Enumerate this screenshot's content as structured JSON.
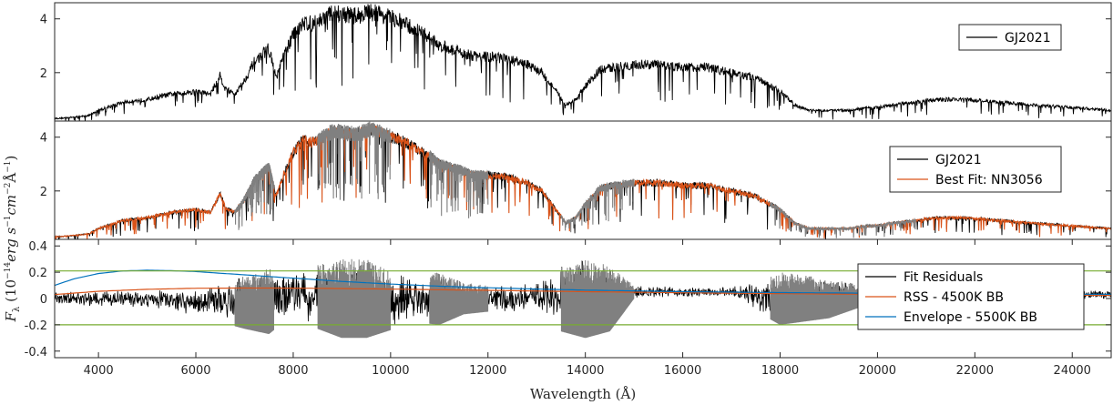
{
  "chart_data": [
    {
      "type": "line",
      "panel": "top",
      "xlim": [
        3100,
        24800
      ],
      "ylim": [
        0.2,
        4.6
      ],
      "yticks": [
        2,
        4
      ],
      "grid": false,
      "legend_position": "top-right",
      "series": [
        {
          "name": "GJ2021",
          "color": "#000000",
          "x": [
            3200,
            3800,
            4000,
            4500,
            5000,
            5500,
            6000,
            6300,
            6500,
            6600,
            6800,
            7000,
            7200,
            7500,
            7650,
            7800,
            8000,
            8200,
            8400,
            8600,
            8800,
            9000,
            9300,
            9600,
            9900,
            10200,
            10500,
            10800,
            11000,
            11200,
            11400,
            11700,
            12000,
            12400,
            12800,
            13100,
            13400,
            13600,
            13800,
            14000,
            14300,
            14600,
            15000,
            15500,
            16000,
            16500,
            17000,
            17500,
            18000,
            18300,
            18600,
            19000,
            19400,
            19800,
            20000,
            20300,
            20800,
            21200,
            21800,
            22500,
            23200,
            24000,
            24800
          ],
          "y": [
            0.3,
            0.4,
            0.6,
            0.9,
            1.0,
            1.2,
            1.3,
            1.2,
            1.9,
            1.4,
            1.2,
            1.7,
            2.4,
            2.9,
            1.8,
            2.6,
            3.4,
            3.9,
            3.8,
            4.0,
            4.2,
            4.2,
            4.1,
            4.3,
            4.1,
            3.9,
            3.6,
            3.3,
            3.0,
            2.9,
            2.8,
            2.6,
            2.6,
            2.5,
            2.3,
            2.0,
            1.3,
            0.8,
            1.0,
            1.5,
            2.1,
            2.2,
            2.3,
            2.3,
            2.2,
            2.2,
            2.0,
            1.8,
            1.3,
            0.8,
            0.6,
            0.6,
            0.6,
            0.7,
            0.7,
            0.8,
            0.9,
            1.0,
            1.0,
            0.9,
            0.8,
            0.7,
            0.6
          ],
          "noise": 0.08
        }
      ]
    },
    {
      "type": "line",
      "panel": "middle",
      "xlim": [
        3100,
        24800
      ],
      "ylim": [
        0.2,
        4.6
      ],
      "yticks": [
        2,
        4
      ],
      "grid": false,
      "legend_position": "top-right",
      "series": [
        {
          "name": "GJ2021",
          "color": "#000000",
          "x": [
            3200,
            3800,
            4000,
            4500,
            5000,
            5500,
            6000,
            6300,
            6500,
            6600,
            6800,
            7000,
            7200,
            7500,
            7650,
            7800,
            8000,
            8200,
            8400,
            8600,
            8800,
            9000,
            9300,
            9600,
            9900,
            10200,
            10500,
            10800,
            11000,
            11200,
            11400,
            11700,
            12000,
            12400,
            12800,
            13100,
            13400,
            13600,
            13800,
            14000,
            14300,
            14600,
            15000,
            15500,
            16000,
            16500,
            17000,
            17500,
            18000,
            18300,
            18600,
            19000,
            19400,
            19800,
            20000,
            20300,
            20800,
            21200,
            21800,
            22500,
            23200,
            24000,
            24800
          ],
          "y": [
            0.3,
            0.4,
            0.6,
            0.9,
            1.0,
            1.2,
            1.3,
            1.2,
            1.9,
            1.4,
            1.2,
            1.7,
            2.4,
            2.9,
            1.8,
            2.6,
            3.4,
            3.9,
            3.8,
            4.0,
            4.2,
            4.2,
            4.1,
            4.3,
            4.1,
            3.9,
            3.6,
            3.3,
            3.0,
            2.9,
            2.8,
            2.6,
            2.6,
            2.5,
            2.3,
            2.0,
            1.3,
            0.8,
            1.0,
            1.5,
            2.1,
            2.2,
            2.3,
            2.3,
            2.2,
            2.2,
            2.0,
            1.8,
            1.3,
            0.8,
            0.6,
            0.6,
            0.6,
            0.7,
            0.7,
            0.8,
            0.9,
            1.0,
            1.0,
            0.9,
            0.8,
            0.7,
            0.6
          ],
          "noise": 0.06
        },
        {
          "name": "Best Fit: NN3056",
          "color": "#d95319",
          "x": [
            3200,
            3800,
            4000,
            4500,
            5000,
            5500,
            6000,
            6300,
            6500,
            6600,
            6800,
            7000,
            7200,
            7500,
            7650,
            7800,
            8000,
            8200,
            8400,
            8600,
            8800,
            9000,
            9300,
            9600,
            9900,
            10200,
            10500,
            10800,
            11000,
            11200,
            11400,
            11700,
            12000,
            12400,
            12800,
            13100,
            13400,
            13600,
            13800,
            14000,
            14300,
            14600,
            15000,
            15500,
            16000,
            16500,
            17000,
            17500,
            18000,
            18300,
            18600,
            19000,
            19400,
            19800,
            20000,
            20300,
            20800,
            21200,
            21800,
            22500,
            23200,
            24000,
            24800
          ],
          "y": [
            0.3,
            0.4,
            0.6,
            0.9,
            1.0,
            1.2,
            1.3,
            1.2,
            1.9,
            1.4,
            1.2,
            1.7,
            2.4,
            2.9,
            1.8,
            2.6,
            3.4,
            3.9,
            3.8,
            4.0,
            4.2,
            4.2,
            4.1,
            4.3,
            4.1,
            3.9,
            3.6,
            3.3,
            3.0,
            2.9,
            2.8,
            2.6,
            2.6,
            2.5,
            2.3,
            2.0,
            1.3,
            0.8,
            1.0,
            1.5,
            2.1,
            2.2,
            2.3,
            2.3,
            2.2,
            2.2,
            2.0,
            1.8,
            1.3,
            0.8,
            0.6,
            0.6,
            0.6,
            0.7,
            0.7,
            0.8,
            0.9,
            1.0,
            1.0,
            0.9,
            0.8,
            0.7,
            0.6
          ],
          "noise": 0.05
        }
      ],
      "masked_ranges": [
        [
          6800,
          7600
        ],
        [
          8500,
          10000
        ],
        [
          10800,
          12000
        ],
        [
          13500,
          15000
        ],
        [
          17800,
          20800
        ]
      ],
      "masked_color": "#808080"
    },
    {
      "type": "line",
      "panel": "bottom",
      "xlim": [
        3100,
        24800
      ],
      "ylim": [
        -0.45,
        0.45
      ],
      "yticks": [
        -0.4,
        -0.2,
        0,
        0.2,
        0.4
      ],
      "xticks": [
        4000,
        6000,
        8000,
        10000,
        12000,
        14000,
        16000,
        18000,
        20000,
        22000,
        24000
      ],
      "xlabel": "Wavelength (Å)",
      "grid": false,
      "legend_position": "right",
      "series": [
        {
          "name": "Fit Residuals",
          "color": "#000000",
          "x": [
            3200,
            4000,
            5000,
            6000,
            7000,
            7500,
            8000,
            8500,
            9000,
            9500,
            10000,
            10500,
            11000,
            11500,
            12000,
            12500,
            13000,
            13500,
            14000,
            14500,
            15000,
            16000,
            17000,
            18000,
            19000,
            20000,
            21000,
            22000,
            23000,
            24000,
            24800
          ],
          "amplitude": [
            0.05,
            0.06,
            0.07,
            0.1,
            0.2,
            0.25,
            0.15,
            0.25,
            0.3,
            0.3,
            0.22,
            0.18,
            0.2,
            0.12,
            0.1,
            0.12,
            0.12,
            0.25,
            0.3,
            0.25,
            0.05,
            0.04,
            0.04,
            0.2,
            0.15,
            0.05,
            0.04,
            0.04,
            0.04,
            0.04,
            0.04
          ],
          "offset": [
            0.0,
            0.0,
            0.0,
            -0.03,
            -0.03,
            -0.02,
            0.03,
            0.02,
            0.0,
            0.0,
            -0.02,
            0.0,
            0.0,
            0.0,
            0.0,
            0.0,
            0.02,
            0.0,
            0.0,
            0.0,
            0.05,
            0.05,
            0.05,
            0.0,
            0.0,
            0.03,
            0.05,
            0.05,
            0.04,
            0.03,
            0.03
          ]
        },
        {
          "name": "RSS - 4500K BB",
          "color": "#d95319",
          "x": [
            3100,
            4000,
            5000,
            6000,
            7000,
            8000,
            9000,
            10000,
            11000,
            12000,
            13000,
            14000,
            16000,
            18000,
            20000,
            22000,
            24800
          ],
          "y": [
            0.03,
            0.055,
            0.07,
            0.078,
            0.08,
            0.079,
            0.076,
            0.072,
            0.067,
            0.062,
            0.057,
            0.052,
            0.044,
            0.037,
            0.032,
            0.028,
            0.024
          ]
        },
        {
          "name": "Envelope - 5500K BB",
          "color": "#0072bd",
          "x": [
            3100,
            3500,
            4000,
            4500,
            5000,
            5500,
            6000,
            7000,
            8000,
            9000,
            10000,
            11000,
            12000,
            13000,
            14000,
            16000,
            18000,
            20000,
            22000,
            24800
          ],
          "y": [
            0.1,
            0.15,
            0.19,
            0.21,
            0.215,
            0.212,
            0.205,
            0.18,
            0.155,
            0.13,
            0.11,
            0.094,
            0.082,
            0.072,
            0.064,
            0.052,
            0.045,
            0.04,
            0.036,
            0.032
          ]
        },
        {
          "name": "",
          "color": "#77ac30",
          "x": [
            3100,
            24800
          ],
          "y": [
            0.21,
            0.21
          ]
        },
        {
          "name": "",
          "color": "#77ac30",
          "x": [
            3100,
            24800
          ],
          "y": [
            -0.2,
            -0.2
          ]
        }
      ],
      "masked_ranges": [
        [
          6800,
          7600
        ],
        [
          8500,
          10000
        ],
        [
          10800,
          12000
        ],
        [
          13500,
          15000
        ],
        [
          17800,
          20000
        ]
      ],
      "masked_color": "#808080"
    }
  ],
  "shared_ylabel_parts": [
    "F",
    "λ",
    " (10",
    "−14",
    "erg s",
    "−1",
    "cm",
    "−2",
    "Å",
    "−1",
    ")"
  ]
}
